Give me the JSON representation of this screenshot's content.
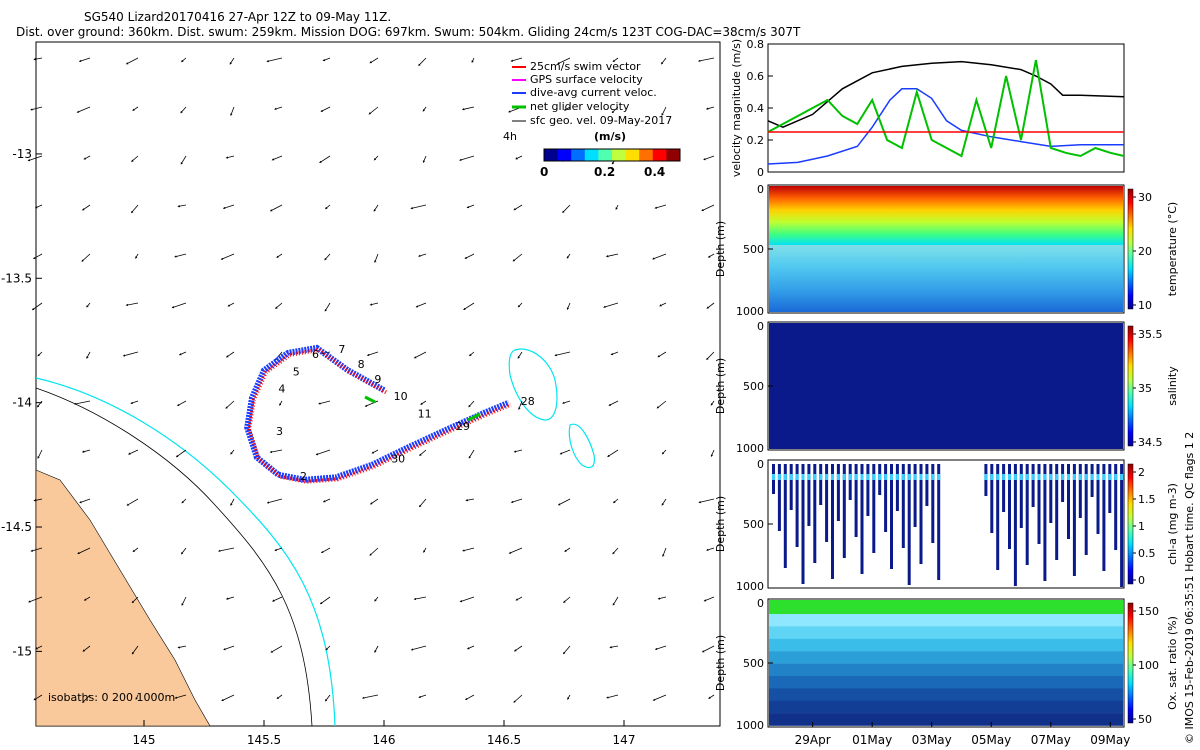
{
  "header": {
    "line1": "SG540 Lizard20170416 27-Apr 12Z to 09-May 11Z.",
    "line2": "Dist. over ground: 360km. Dist. swum: 259km. Mission DOG: 697km. Swum: 504km. Gliding 24cm/s 123T COG-DAC=38cm/s 307T"
  },
  "credit": "© IMOS 15-Feb-2019 06:35:51 Hobart time. QC flags 1  2",
  "colors": {
    "land": "#f9c89b",
    "coast_200m": "#00e5ee",
    "track_swim": "#ff0000",
    "track_current": "#1a3cff",
    "net_velocity": "#00c000",
    "ref_line": "#ff0000",
    "speed_black": "#000000"
  },
  "chart_data": [
    {
      "type": "map",
      "name": "glider-track-map",
      "xticks": [
        "145",
        "145.5",
        "146",
        "146.5",
        "147"
      ],
      "yticks": [
        "-13",
        "-13.5",
        "-14",
        "-14.5",
        "-15"
      ],
      "xlim": [
        144.55,
        147.4
      ],
      "ylim": [
        -15.3,
        -12.55
      ],
      "legend": {
        "items": [
          "25cm/s swim vector",
          "GPS surface velocity",
          "dive-avg current veloc.",
          "net glider velocity",
          "sfc geo. vel. 09-May-2017"
        ],
        "scale_label": "4h",
        "units": "(m/s)",
        "colorbar_ticks": [
          "0",
          "0.2",
          "0.4"
        ]
      },
      "isobaths_label": "isobaths: 0   200  1000m",
      "track": [
        [
          146.0,
          -13.95
        ],
        [
          145.85,
          -13.87
        ],
        [
          145.72,
          -13.78
        ],
        [
          145.6,
          -13.8
        ],
        [
          145.5,
          -13.87
        ],
        [
          145.45,
          -13.98
        ],
        [
          145.43,
          -14.1
        ],
        [
          145.47,
          -14.22
        ],
        [
          145.56,
          -14.29
        ],
        [
          145.67,
          -14.31
        ],
        [
          145.8,
          -14.3
        ],
        [
          145.95,
          -14.25
        ],
        [
          146.1,
          -14.18
        ],
        [
          146.28,
          -14.1
        ],
        [
          146.42,
          -14.04
        ],
        [
          146.52,
          -14.0
        ]
      ],
      "labels": [
        {
          "text": "2",
          "lon": 145.65,
          "lat": -14.31
        },
        {
          "text": "3",
          "lon": 145.55,
          "lat": -14.13
        },
        {
          "text": "4",
          "lon": 145.56,
          "lat": -13.96
        },
        {
          "text": "5",
          "lon": 145.62,
          "lat": -13.89
        },
        {
          "text": "6",
          "lon": 145.7,
          "lat": -13.82
        },
        {
          "text": "7",
          "lon": 145.81,
          "lat": -13.8
        },
        {
          "text": "8",
          "lon": 145.89,
          "lat": -13.86
        },
        {
          "text": "9",
          "lon": 145.96,
          "lat": -13.92
        },
        {
          "text": "10",
          "lon": 146.04,
          "lat": -13.99
        },
        {
          "text": "11",
          "lon": 146.14,
          "lat": -14.06
        },
        {
          "text": "29",
          "lon": 146.3,
          "lat": -14.11
        },
        {
          "text": "28",
          "lon": 146.57,
          "lat": -14.01
        },
        {
          "text": "30",
          "lon": 146.03,
          "lat": -14.24
        }
      ]
    },
    {
      "type": "line",
      "name": "velocity-magnitude",
      "ylabel": "velocity magnitude (m/s)",
      "ylim": [
        0,
        0.8
      ],
      "yticks": [
        "0",
        "0.2",
        "0.4",
        "0.6",
        "0.8"
      ],
      "xlim": [
        27.5,
        39.46
      ],
      "series": [
        {
          "color": "#000000",
          "x": [
            27.5,
            28.0,
            29.0,
            30.0,
            31.0,
            32.0,
            33.0,
            34.0,
            35.0,
            36.0,
            36.5,
            37.0,
            37.4,
            38.0,
            39.46
          ],
          "values": [
            0.32,
            0.28,
            0.36,
            0.52,
            0.62,
            0.66,
            0.68,
            0.69,
            0.67,
            0.64,
            0.6,
            0.55,
            0.48,
            0.48,
            0.47
          ]
        },
        {
          "color": "#1a3cff",
          "x": [
            27.5,
            28.5,
            29.5,
            30.5,
            31.0,
            31.6,
            32.0,
            32.5,
            33.0,
            33.5,
            34.0,
            35.0,
            36.0,
            37.0,
            38.0,
            39.46
          ],
          "values": [
            0.05,
            0.06,
            0.1,
            0.16,
            0.28,
            0.45,
            0.52,
            0.52,
            0.46,
            0.32,
            0.26,
            0.22,
            0.19,
            0.16,
            0.17,
            0.17
          ]
        },
        {
          "color": "#00c000",
          "x": [
            27.5,
            28.0,
            28.5,
            29.0,
            29.5,
            30.0,
            30.5,
            31.0,
            31.5,
            32.0,
            32.5,
            33.0,
            33.5,
            34.0,
            34.5,
            35.0,
            35.5,
            36.0,
            36.5,
            37.0,
            37.5,
            38.0,
            38.5,
            39.0,
            39.46
          ],
          "values": [
            0.25,
            0.3,
            0.35,
            0.4,
            0.45,
            0.35,
            0.3,
            0.45,
            0.2,
            0.15,
            0.5,
            0.2,
            0.15,
            0.1,
            0.45,
            0.15,
            0.6,
            0.2,
            0.7,
            0.15,
            0.12,
            0.1,
            0.15,
            0.12,
            0.1
          ]
        }
      ],
      "ref_value": 0.25
    },
    {
      "type": "heatmap",
      "name": "temperature",
      "ylabel": "Depth (m)",
      "clabel": "temperature (°C)",
      "yticks": [
        "0",
        "500",
        "1000"
      ],
      "cticks": [
        "10",
        "20",
        "30"
      ]
    },
    {
      "type": "heatmap",
      "name": "salinity",
      "ylabel": "Depth (m)",
      "clabel": "salinity",
      "yticks": [
        "0",
        "500",
        "1000"
      ],
      "cticks": [
        "34.5",
        "35",
        "35.5"
      ]
    },
    {
      "type": "heatmap",
      "name": "chlorophyll",
      "ylabel": "Depth (m)",
      "clabel": "chl-a (mg m-3)",
      "yticks": [
        "0",
        "500",
        "1000"
      ],
      "cticks": [
        "0",
        "0.5",
        "1",
        "1.5",
        "2"
      ]
    },
    {
      "type": "heatmap",
      "name": "oxygen",
      "ylabel": "Depth (m)",
      "clabel": "Ox. sat. ratio (%)",
      "yticks": [
        "0",
        "500",
        "1000"
      ],
      "cticks": [
        "50",
        "100",
        "150"
      ],
      "xticks": [
        "29Apr",
        "01May",
        "03May",
        "05May",
        "07May",
        "09May"
      ]
    }
  ]
}
